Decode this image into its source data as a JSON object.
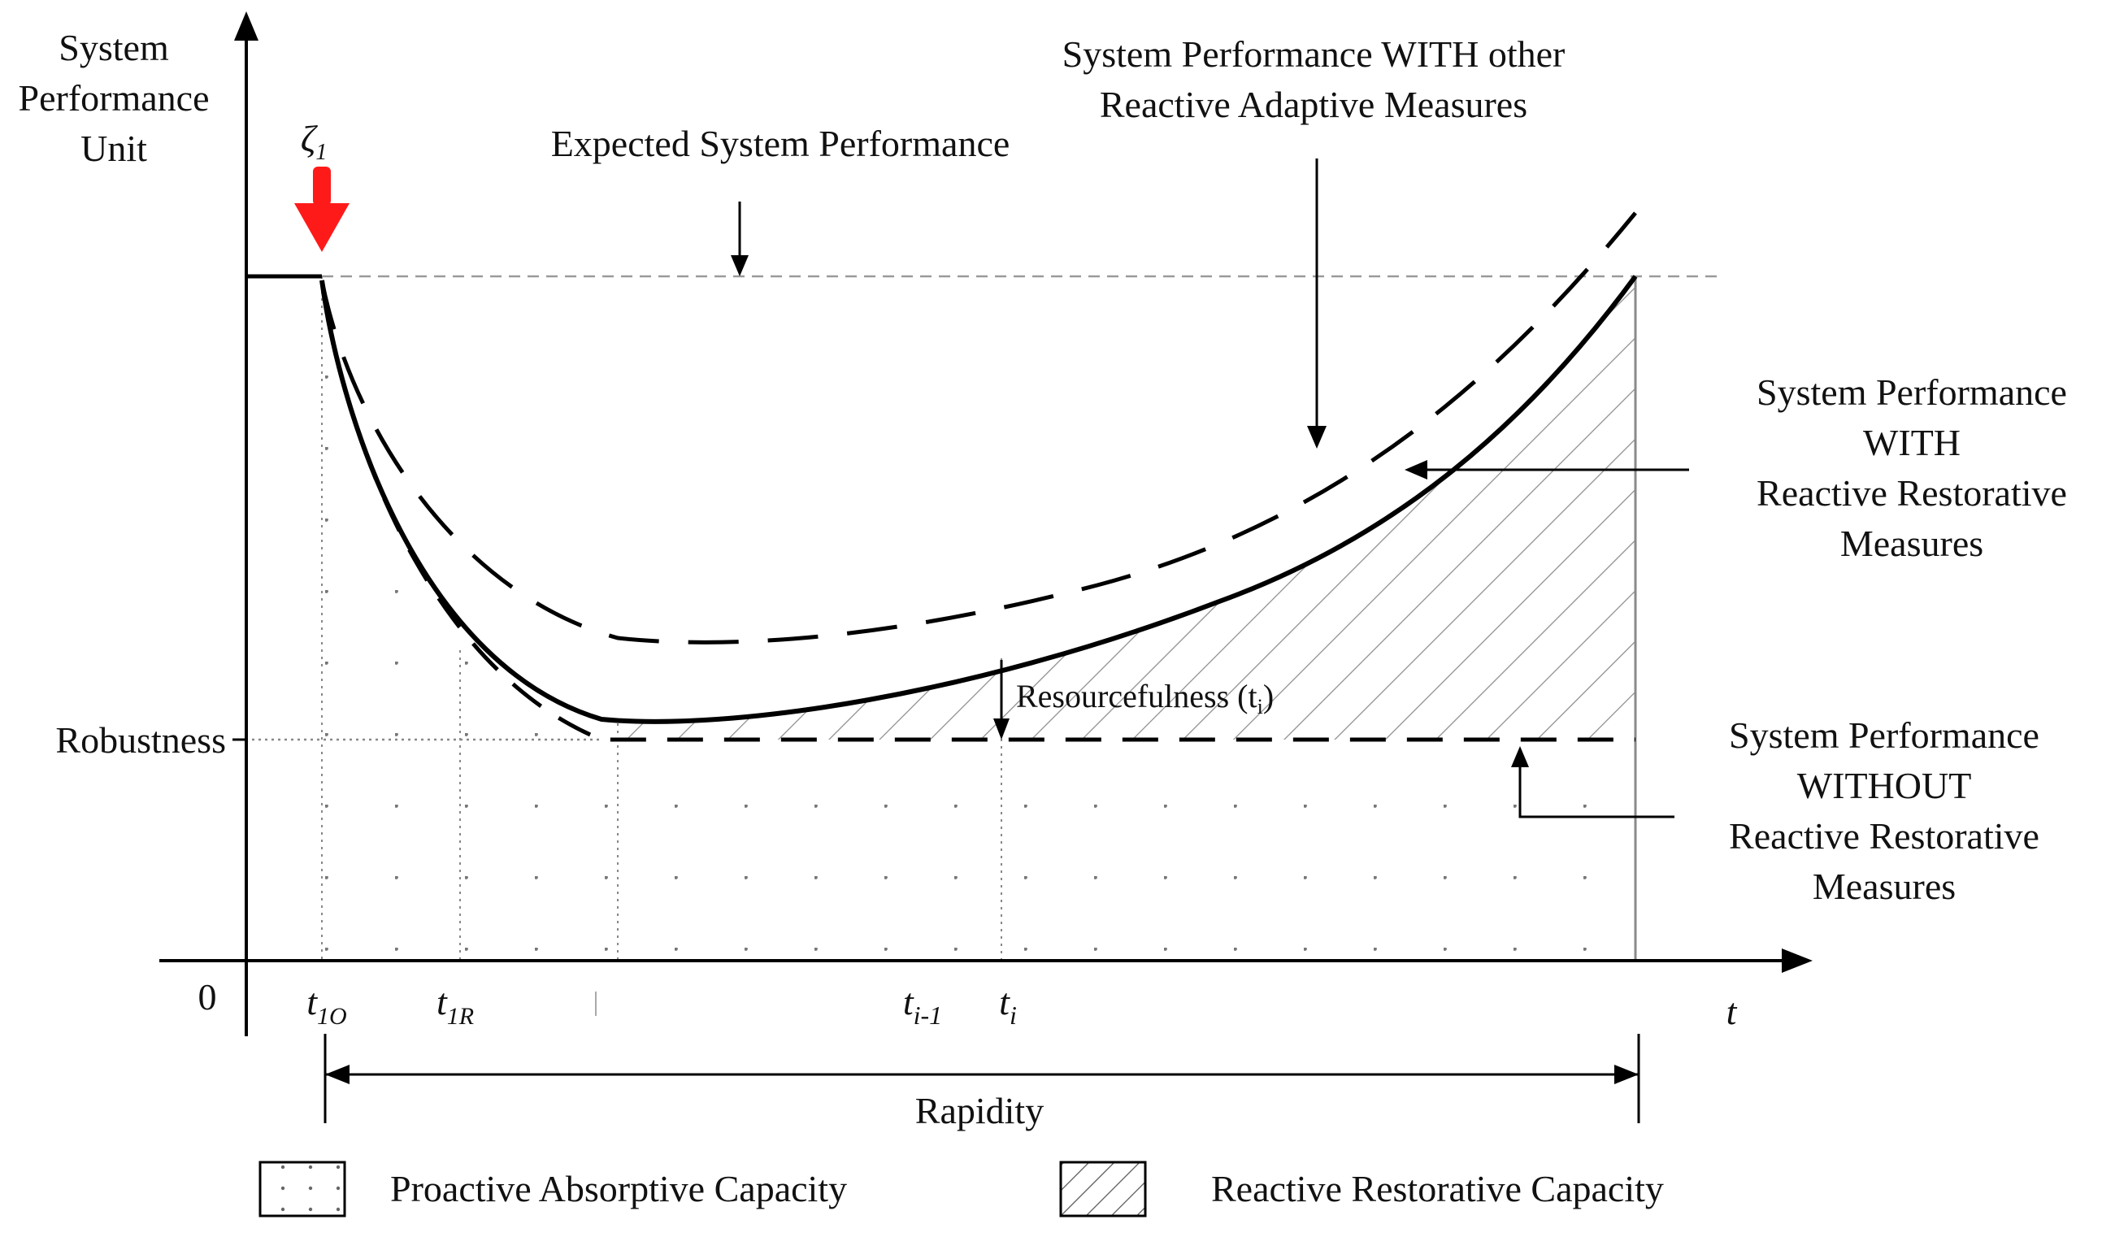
{
  "axes": {
    "y_label": [
      "System",
      "Performance",
      "Unit"
    ],
    "x_label": "t",
    "origin_label": "0",
    "robustness_label": "Robustness"
  },
  "event": {
    "symbol": "ζ",
    "subscript": "1"
  },
  "time_ticks": {
    "t1o": {
      "base": "t",
      "sub": "1O"
    },
    "t1r": {
      "base": "t",
      "sub": "1R"
    },
    "ti_minus_1": {
      "base": "t",
      "sub": "i-1"
    },
    "ti": {
      "base": "t",
      "sub": "i"
    }
  },
  "annotations": {
    "expected": "Expected System Performance",
    "with_other": [
      "System Performance WITH  other",
      "Reactive Adaptive Measures"
    ],
    "with_reactive": [
      "System Performance",
      "WITH",
      "Reactive Restorative",
      "Measures"
    ],
    "without_reactive": [
      "System Performance",
      "WITHOUT",
      "Reactive Restorative",
      "Measures"
    ],
    "resourcefulness": "Resourcefulness (t",
    "resourcefulness_sub": "i",
    "resourcefulness_close": ")",
    "rapidity": "Rapidity"
  },
  "legend": {
    "proactive": "Proactive Absorptive Capacity",
    "reactive": "Reactive Restorative Capacity"
  },
  "colors": {
    "event_arrow": "#ff1a1a",
    "line": "#000000",
    "guide": "#9a9a9a"
  }
}
